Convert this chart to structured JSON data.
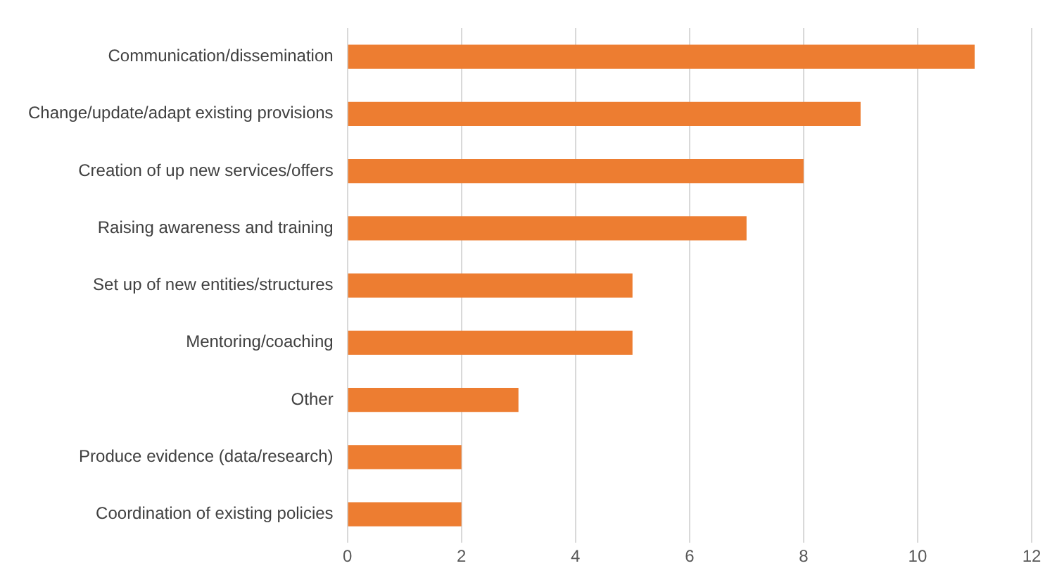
{
  "chart_data": {
    "type": "bar",
    "orientation": "horizontal",
    "categories": [
      "Communication/dissemination",
      "Change/update/adapt existing provisions",
      "Creation of up new services/offers",
      "Raising awareness and training",
      "Set up of new entities/structures",
      "Mentoring/coaching",
      "Other",
      "Produce evidence (data/research)",
      "Coordination of existing policies"
    ],
    "values": [
      11,
      9,
      8,
      7,
      5,
      5,
      3,
      2,
      2
    ],
    "color": "#ed7d31",
    "xlim": [
      0,
      12
    ],
    "xticks": [
      0,
      2,
      4,
      6,
      8,
      10,
      12
    ],
    "grid": "x",
    "legend": false
  }
}
